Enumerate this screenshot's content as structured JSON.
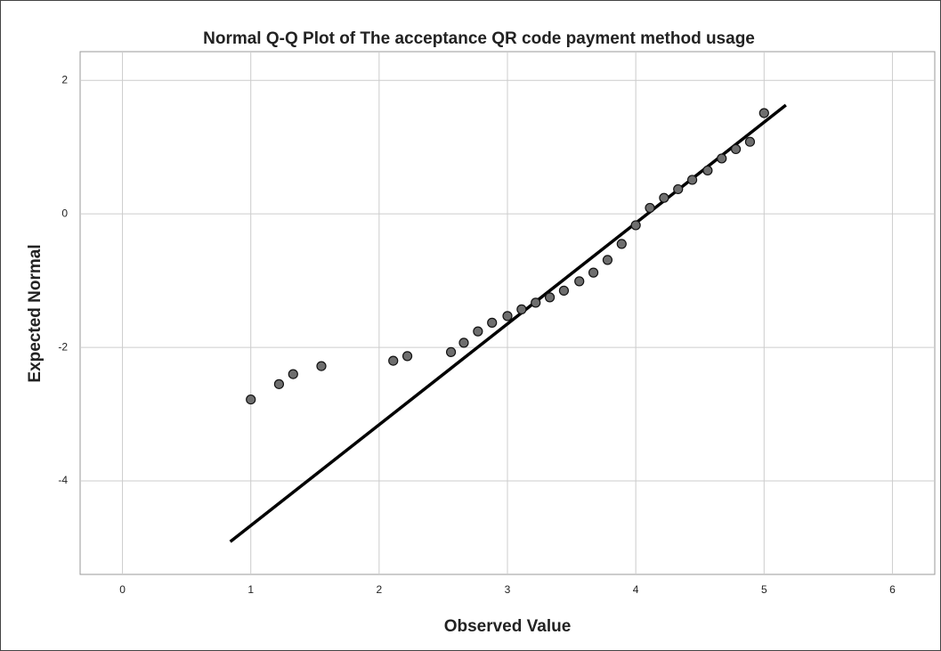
{
  "chart_data": {
    "type": "scatter",
    "title": "Normal Q-Q Plot of The acceptance QR code payment method usage",
    "x_label": "Observed Value",
    "y_label": "Expected Normal",
    "x": [
      1,
      1.22,
      1.33,
      1.55,
      2.11,
      2.22,
      2.56,
      2.66,
      2.77,
      2.88,
      3,
      3.11,
      3.22,
      3.33,
      3.44,
      3.56,
      3.67,
      3.78,
      3.89,
      4,
      4.11,
      4.22,
      4.33,
      4.44,
      4.56,
      4.67,
      4.78,
      4.89,
      5
    ],
    "values": [
      -2.78,
      -2.55,
      -2.4,
      -2.28,
      -2.2,
      -2.13,
      -2.07,
      -1.93,
      -1.76,
      -1.63,
      -1.53,
      -1.43,
      -1.33,
      -1.25,
      -1.15,
      -1.01,
      -0.88,
      -0.69,
      -0.45,
      -0.17,
      0.09,
      0.24,
      0.37,
      0.51,
      0.65,
      0.83,
      0.97,
      1.08,
      1.51
    ],
    "fit_line": {
      "x": [
        0.84,
        5.17
      ],
      "y": [
        -4.91,
        1.63
      ]
    },
    "point_color": "#6e6e6e",
    "line_color": "#000000",
    "xlim": [
      -0.33,
      6.33
    ],
    "ylim": [
      -5.4,
      2.43
    ],
    "xticks": [
      0,
      1,
      2,
      3,
      4,
      5,
      6
    ],
    "yticks": [
      2,
      0,
      -2,
      -4
    ],
    "grid": true
  }
}
